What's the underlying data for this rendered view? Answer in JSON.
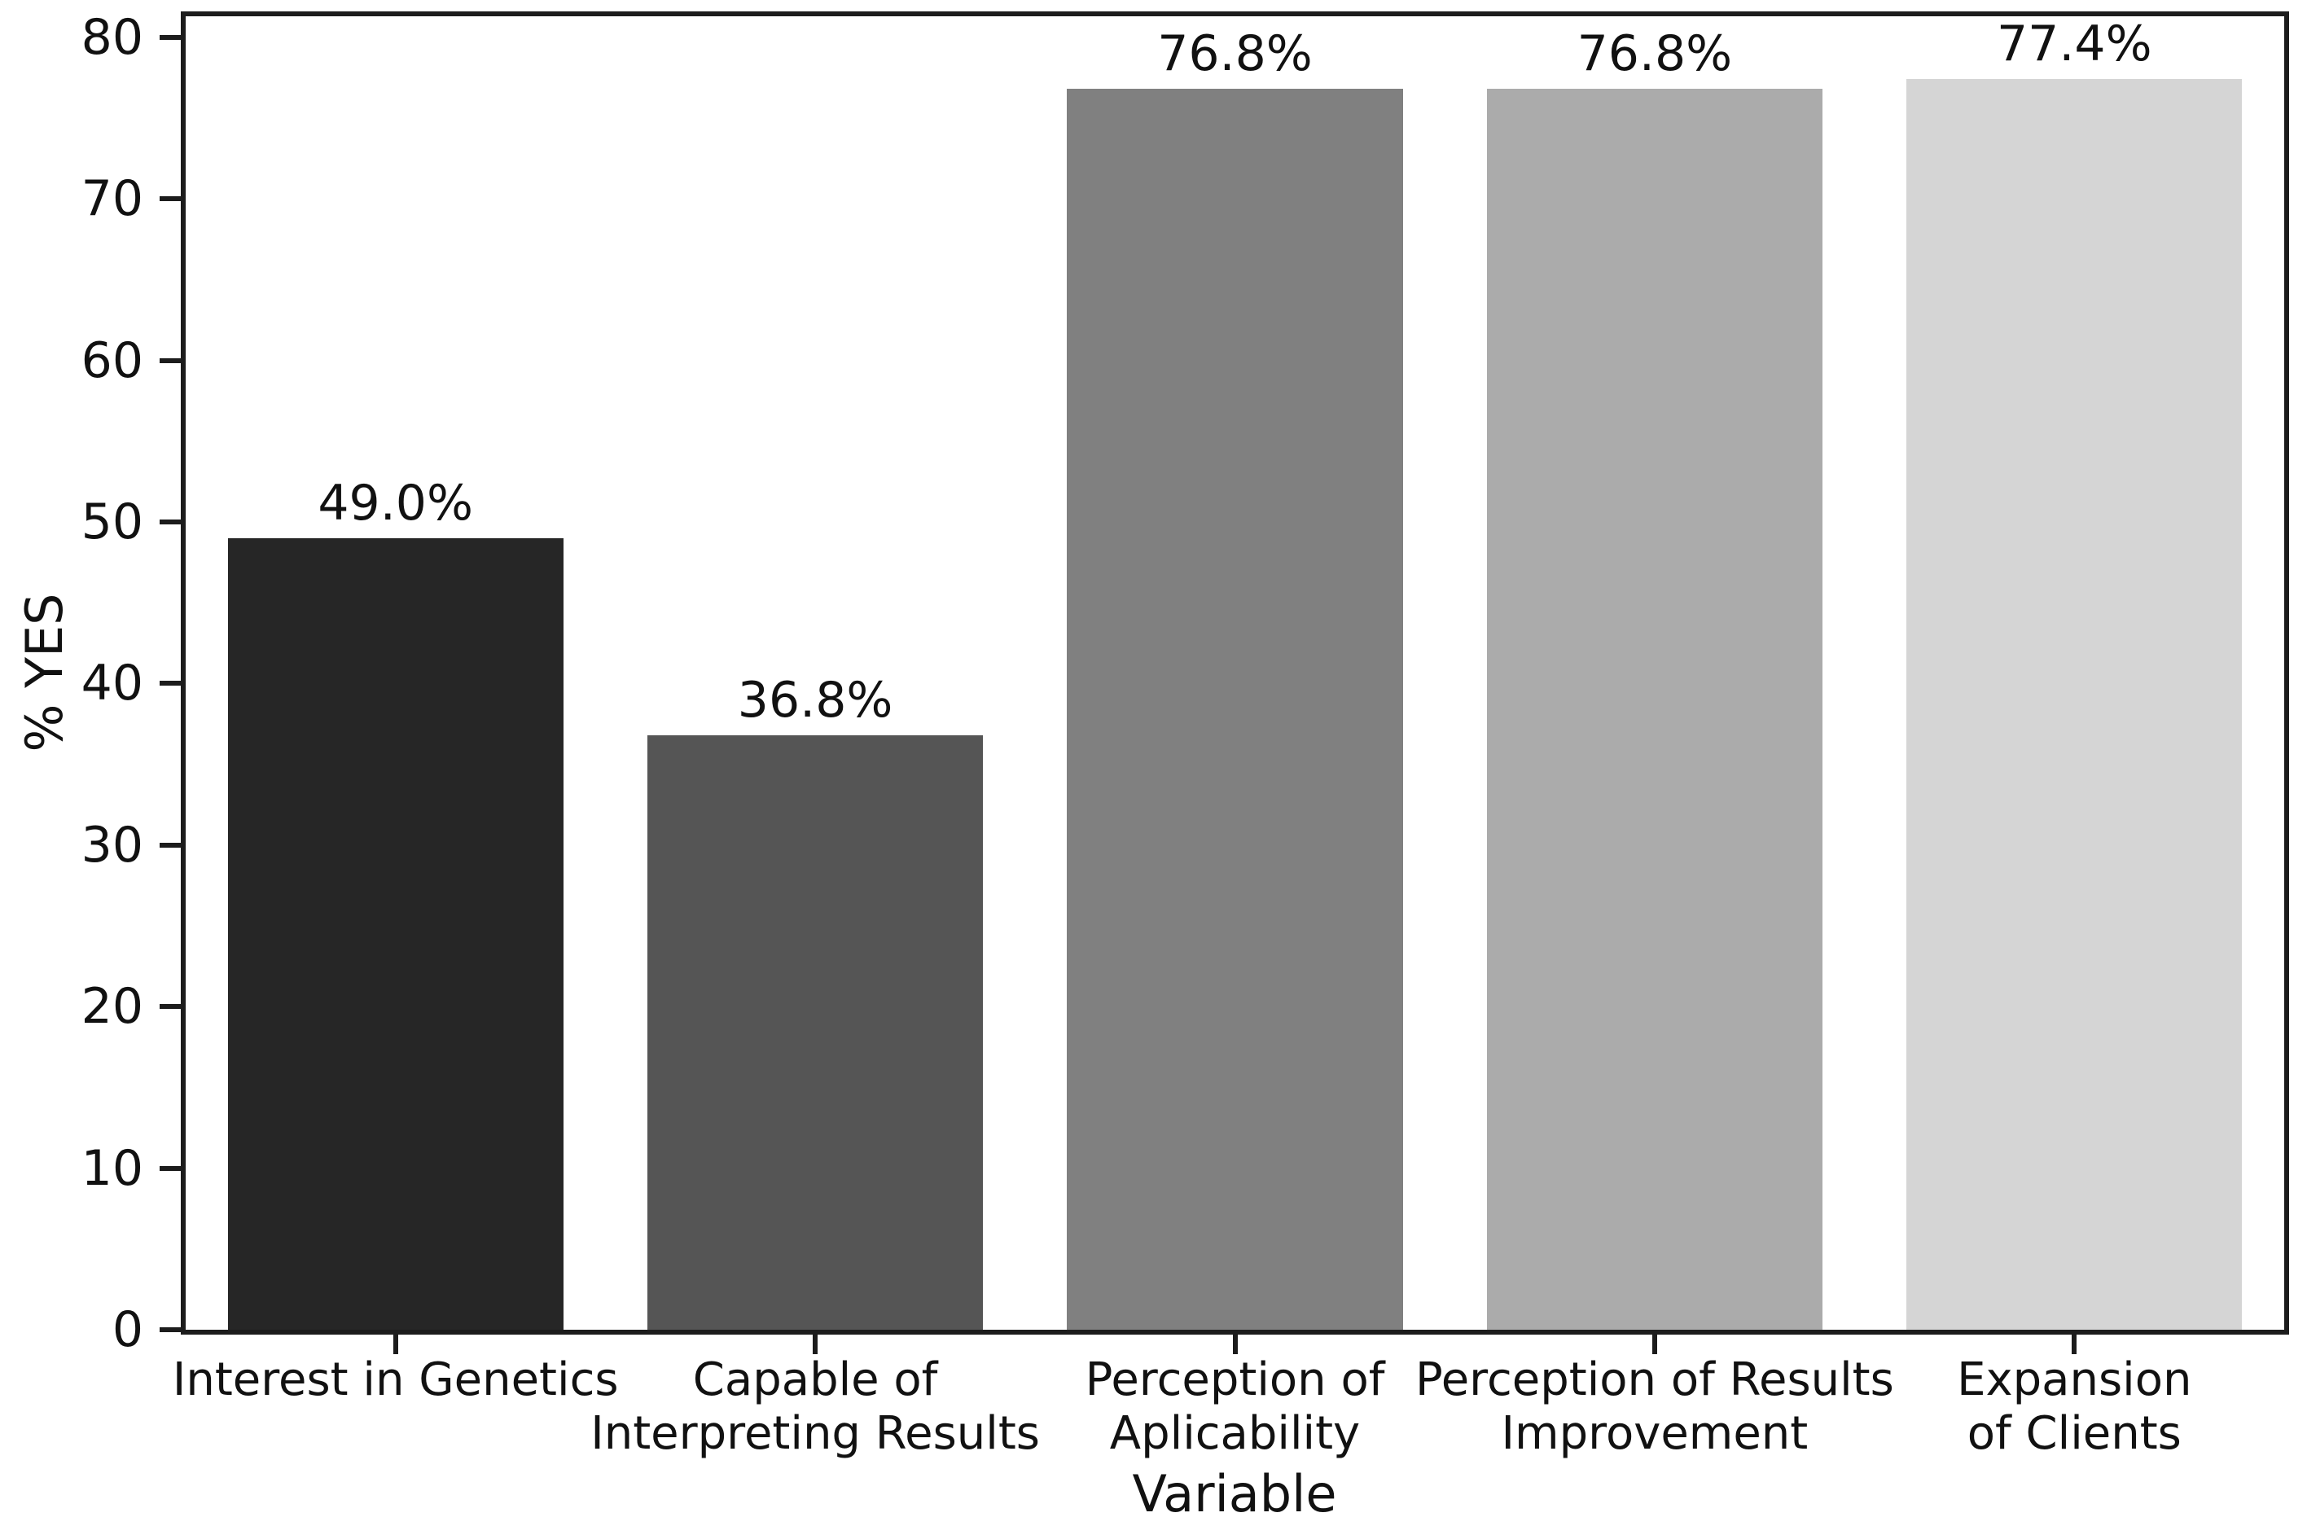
{
  "figure": {
    "background": "#ffffff",
    "spine_color": "#1c1c1c",
    "text_color": "#111111"
  },
  "chart_data": {
    "type": "bar",
    "title": "",
    "xlabel": "Variable",
    "ylabel": "% YES",
    "ylim": [
      0,
      81.3
    ],
    "yticks": [
      0,
      10,
      20,
      30,
      40,
      50,
      60,
      70,
      80
    ],
    "grid": false,
    "legend": null,
    "categories": [
      "Interest in Genetics",
      "Capable of Interpreting Results",
      "Perception of Aplicability",
      "Perception of Results Improvement",
      "Expansion of Clients"
    ],
    "category_lines": [
      [
        "Interest in Genetics"
      ],
      [
        "Capable of",
        "Interpreting Results"
      ],
      [
        "Perception of",
        "Aplicability"
      ],
      [
        "Perception of Results",
        "Improvement"
      ],
      [
        "Expansion",
        "of Clients"
      ]
    ],
    "values": [
      49.0,
      36.8,
      76.8,
      76.8,
      77.4
    ],
    "value_labels": [
      "49.0%",
      "36.8%",
      "76.8%",
      "76.8%",
      "77.4%"
    ],
    "bar_colors": [
      "#262626",
      "#555555",
      "#808080",
      "#ababab",
      "#d5d5d5"
    ]
  }
}
